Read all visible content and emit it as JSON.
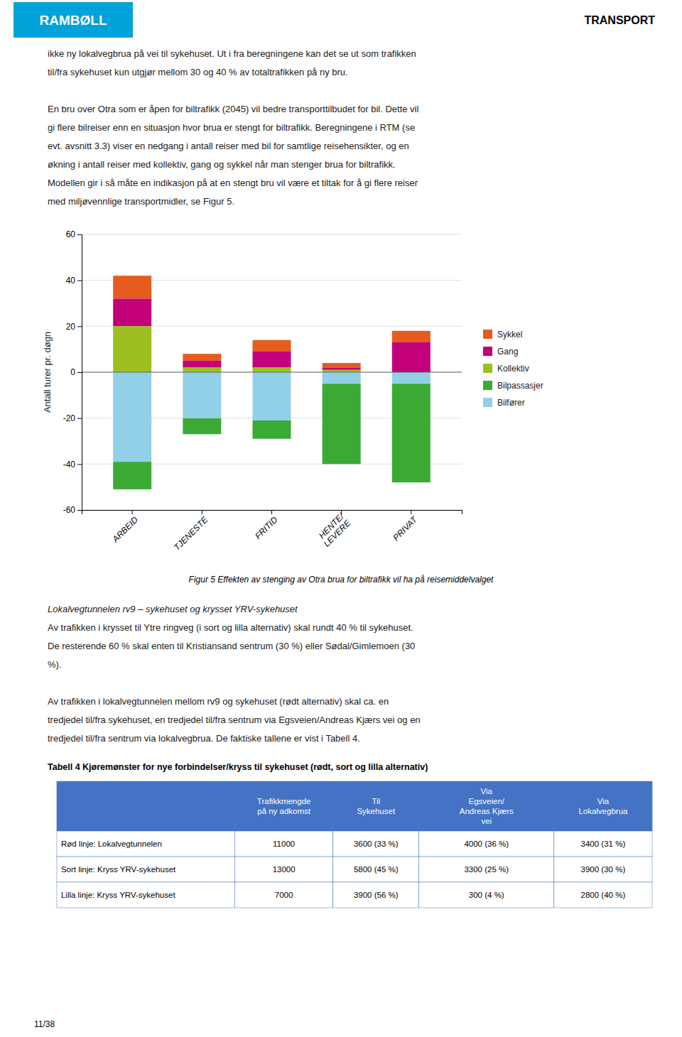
{
  "header": {
    "logo_text": "RAMBØLL",
    "logo_color": "#00a3d9",
    "label": "TRANSPORT"
  },
  "top_text": [
    [
      "ikke ny lokalvegbrua på vei til sykehuset. Ut i fra beregningene kan det se ut som trafikken",
      "til/fra sykehuset kun utgjør mellom 30 og 40 % av totaltrafikken på ny bru."
    ],
    [
      "En bru over Otra som er åpen for biltrafikk (2045) vil bedre transporttilbudet for bil. Dette vil",
      "gi flere bilreiser enn en situasjon hvor brua er stengt for biltrafikk. Beregningene i RTM (se",
      "evt. avsnitt 3.3) viser en nedgang i antall reiser med bil for samtlige reisehensikter, og en",
      "økning i antall reiser med kollektiv, gang og sykkel når man stenger brua for biltrafikk.",
      "Modellen gir i så måte en indikasjon på at en stengt bru vil være et tiltak for å gi flere reiser",
      "med miljøvennlige transportmidler, se Figur 5."
    ]
  ],
  "chart_data": {
    "type": "bar",
    "stacked": true,
    "categories": [
      "ARBEID",
      "TJENESTE",
      "FRITID",
      "HENTE/\nLEVERE",
      "PRIVAT"
    ],
    "series": [
      {
        "name": "Sykkel",
        "color": "#e55c1e",
        "values": [
          10,
          3,
          5,
          2,
          5
        ]
      },
      {
        "name": "Gang",
        "color": "#c2007a",
        "values": [
          12,
          3,
          7,
          1,
          13
        ]
      },
      {
        "name": "Kollektiv",
        "color": "#9dc020",
        "values": [
          20,
          2,
          2,
          1,
          0
        ]
      },
      {
        "name": "Bilpassasjer",
        "color": "#3aaa35",
        "values": [
          -12,
          -7,
          -8,
          -35,
          -43
        ]
      },
      {
        "name": "Bilfører",
        "color": "#92d0e8",
        "values": [
          -39,
          -20,
          -21,
          -5,
          -5
        ]
      }
    ],
    "ylabel": "Antall turer pr. døgn",
    "ylim": [
      -60,
      60
    ],
    "yticks": [
      -60,
      -40,
      -20,
      0,
      20,
      40,
      60
    ],
    "grid": true,
    "legend": "right"
  },
  "caption": "Figur 5 Effekten av stenging av Otra brua for biltrafikk vil ha på reisemiddelvalget",
  "bottom_heading": "Lokalvegtunnelen rv9 – sykehuset og krysset YRV-sykehuset",
  "bottom_text": [
    [
      "Av trafikken i krysset til Ytre ringveg (i sort og lilla alternativ) skal rundt 40 % til sykehuset.",
      "De resterende 60 % skal enten til Kristiansand sentrum (30 %) eller Sødal/Gimlemoen (30",
      "%)."
    ],
    [
      "Av trafikken i lokalvegtunnelen mellom rv9 og sykehuset (rødt alternativ) skal ca. en",
      "tredjedel til/fra sykehuset, en tredjedel til/fra sentrum via Egsveien/Andreas Kjærs vei og en",
      "tredjedel til/fra sentrum via lokalvegbrua. De faktiske tallene er vist i Tabell 4."
    ]
  ],
  "table": {
    "title": "Tabell 4 Kjøremønster for nye forbindelser/kryss til sykehuset (rødt, sort og lilla alternativ)",
    "header_color": "#4472c4",
    "columns": [
      null,
      "Trafikkmengde\npå ny adkomst",
      "Til\nSykehuset",
      "Via\nEgsveien/\nAndreas Kjærs\nvei",
      "Via\nLokalvegbrua"
    ],
    "rows": [
      [
        "Rød linje: Lokalvegtunnelen",
        "11000",
        "3600 (33 %)",
        "4000 (36 %)",
        "3400 (31 %)"
      ],
      [
        "Sort linje: Kryss YRV-sykehuset",
        "13000",
        "5800 (45 %)",
        "3300 (25 %)",
        "3900 (30 %)"
      ],
      [
        "Lilla linje: Kryss YRV-sykehuset",
        "7000",
        "3900 (56 %)",
        "300 (4 %)",
        "2800 (40 %)"
      ]
    ]
  },
  "page_label": "11/38"
}
